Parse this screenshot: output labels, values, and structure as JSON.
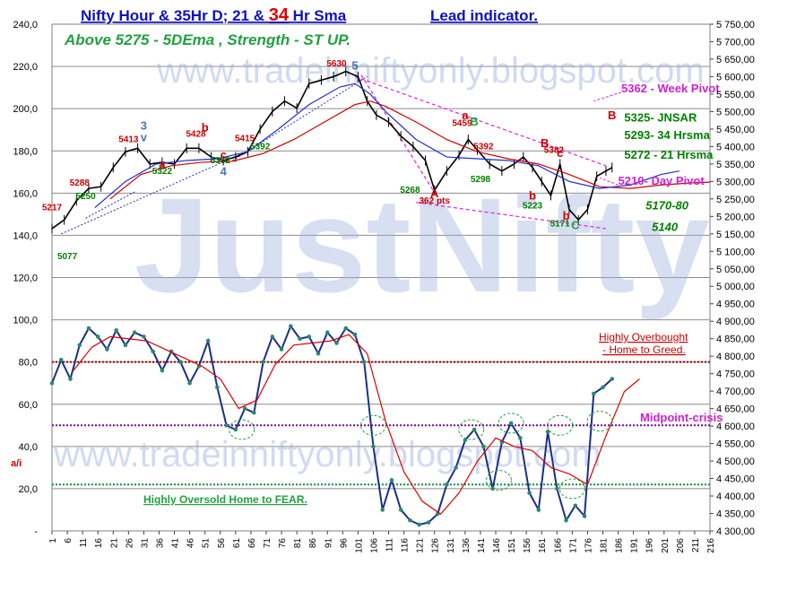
{
  "chart_data": [
    {
      "type": "line",
      "panel": "price",
      "title": "Nifty Hour & 35Hr D; 21 & 34 Hr Sma",
      "title_parts": [
        "Nifty Hour & 35Hr D; 21 & ",
        "34",
        " Hr Sma"
      ],
      "lead_title": "Lead indicator.",
      "subtitle": "Above 5275 -    5DEma ,  Strength - ST  UP.",
      "watermark_top": "www.tradeinniftyonly.blogspot.com",
      "watermark_big": "JustNifty",
      "y_right_ticks": [
        "5 750,00",
        "5 700,00",
        "5 650,00",
        "5 600,00",
        "5 550,00",
        "5 500,00",
        "5 450,00",
        "5 400,00",
        "5 350,00",
        "5 300,00",
        "5 250,00",
        "5 200,00",
        "5 150,00",
        "5 100,00",
        "5 050,00",
        "5 000,00",
        "4 950,00",
        "4 900,00",
        "4 850,00",
        "4 800,00",
        "4 750,00",
        "4 700,00",
        "4 650,00",
        "4 600,00",
        "4 550,00",
        "4 500,00",
        "4 450,00",
        "4 400,00",
        "4 350,00",
        "4 300,00"
      ],
      "y_right_range": [
        4300,
        5750
      ],
      "x_ticks": [
        "1",
        "6",
        "11",
        "16",
        "21",
        "26",
        "31",
        "36",
        "41",
        "46",
        "51",
        "56",
        "61",
        "66",
        "71",
        "76",
        "81",
        "86",
        "91",
        "96",
        "101",
        "106",
        "111",
        "116",
        "121",
        "126",
        "131",
        "136",
        "141",
        "146",
        "151",
        "156",
        "161",
        "166",
        "171",
        "176",
        "181",
        "186",
        "191",
        "196",
        "201",
        "206",
        "211",
        "216"
      ],
      "x_range": [
        1,
        216
      ],
      "series": [
        {
          "name": "Nifty Hour",
          "color": "#000000",
          "x": [
            1,
            5,
            9,
            13,
            17,
            21,
            25,
            29,
            33,
            37,
            41,
            45,
            49,
            53,
            57,
            61,
            65,
            69,
            73,
            77,
            81,
            85,
            89,
            93,
            97,
            101,
            104,
            107,
            111,
            115,
            119,
            123,
            126,
            130,
            134,
            137,
            140,
            144,
            148,
            152,
            155,
            158,
            161,
            164,
            167,
            170,
            173,
            176,
            179,
            182,
            184
          ],
          "y": [
            5165,
            5190,
            5245,
            5280,
            5285,
            5340,
            5385,
            5395,
            5350,
            5355,
            5350,
            5395,
            5395,
            5370,
            5360,
            5370,
            5385,
            5450,
            5500,
            5530,
            5510,
            5580,
            5590,
            5600,
            5615,
            5600,
            5530,
            5490,
            5470,
            5430,
            5400,
            5360,
            5275,
            5330,
            5375,
            5420,
            5390,
            5350,
            5330,
            5350,
            5370,
            5340,
            5300,
            5260,
            5350,
            5220,
            5190,
            5220,
            5315,
            5330,
            5340
          ]
        },
        {
          "name": "34 Hr Sma",
          "color": "#d00000",
          "x": [
            20,
            30,
            40,
            50,
            60,
            70,
            80,
            90,
            100,
            105,
            110,
            120,
            130,
            140,
            150,
            160,
            170,
            180,
            190,
            200,
            210,
            216
          ],
          "y": [
            5250,
            5320,
            5345,
            5355,
            5358,
            5380,
            5420,
            5470,
            5520,
            5530,
            5515,
            5470,
            5420,
            5385,
            5365,
            5350,
            5320,
            5285,
            5280,
            5290,
            5296,
            5298
          ]
        },
        {
          "name": "21 Hrsma",
          "color": "#1f2fd0",
          "x": [
            15,
            25,
            35,
            45,
            55,
            65,
            75,
            85,
            95,
            100,
            105,
            110,
            120,
            130,
            140,
            150,
            160,
            170,
            180,
            190,
            200,
            206
          ],
          "y": [
            5225,
            5300,
            5350,
            5360,
            5365,
            5385,
            5450,
            5520,
            5570,
            5580,
            5550,
            5500,
            5420,
            5370,
            5365,
            5360,
            5345,
            5300,
            5280,
            5290,
            5320,
            5330
          ]
        }
      ],
      "points": [
        {
          "x": 1,
          "y": 5217,
          "text": "5217",
          "color": "#cc0000"
        },
        {
          "x": 6,
          "y": 5077,
          "text": "5077",
          "color": "#008000"
        },
        {
          "x": 10,
          "y": 5288,
          "text": "5288",
          "color": "#cc0000"
        },
        {
          "x": 12,
          "y": 5250,
          "text": "5250",
          "color": "#008000"
        },
        {
          "x": 26,
          "y": 5413,
          "text": "5413",
          "color": "#cc0000"
        },
        {
          "x": 37,
          "y": 5322,
          "text": "5322",
          "color": "#008000"
        },
        {
          "x": 48,
          "y": 5428,
          "text": "5428",
          "color": "#cc0000"
        },
        {
          "x": 56,
          "y": 5352,
          "text": "5352",
          "color": "#008000"
        },
        {
          "x": 64,
          "y": 5415,
          "text": "5415",
          "color": "#cc0000"
        },
        {
          "x": 69,
          "y": 5392,
          "text": "5392",
          "color": "#008000"
        },
        {
          "x": 94,
          "y": 5630,
          "text": "5630",
          "color": "#cc0000"
        },
        {
          "x": 118,
          "y": 5268,
          "text": "5268",
          "color": "#008000"
        },
        {
          "x": 126,
          "y": 5237,
          "text": "362 pts",
          "color": "#cc0000"
        },
        {
          "x": 135,
          "y": 5459,
          "text": "5459",
          "color": "#cc0000"
        },
        {
          "x": 142,
          "y": 5392,
          "text": "5392",
          "color": "#cc0000"
        },
        {
          "x": 141,
          "y": 5298,
          "text": "5298",
          "color": "#008000"
        },
        {
          "x": 158,
          "y": 5223,
          "text": "5223",
          "color": "#008000"
        },
        {
          "x": 165,
          "y": 5382,
          "text": "5382",
          "color": "#cc0000"
        },
        {
          "x": 167,
          "y": 5171,
          "text": "5171",
          "color": "#008000"
        }
      ],
      "wave_labels": [
        {
          "x": 31,
          "y": 5448,
          "text": "3",
          "color": "#4a76b6"
        },
        {
          "x": 31,
          "y": 5415,
          "text": "v",
          "color": "#4a76b6"
        },
        {
          "x": 37,
          "y": 5338,
          "text": "a",
          "color": "#cc0000"
        },
        {
          "x": 51,
          "y": 5443,
          "text": "b",
          "color": "#cc0000"
        },
        {
          "x": 57,
          "y": 5365,
          "text": "c",
          "color": "#cc0000"
        },
        {
          "x": 57,
          "y": 5318,
          "text": "4",
          "color": "#4a76b6"
        },
        {
          "x": 100,
          "y": 5620,
          "text": "5",
          "color": "#4a76b6"
        },
        {
          "x": 126,
          "y": 5255,
          "text": "A",
          "color": "#cc0000"
        },
        {
          "x": 136,
          "y": 5478,
          "text": "a",
          "color": "#cc0000"
        },
        {
          "x": 139,
          "y": 5460,
          "text": "B",
          "color": "#22a040"
        },
        {
          "x": 158,
          "y": 5248,
          "text": "b",
          "color": "#cc0000"
        },
        {
          "x": 162,
          "y": 5398,
          "text": "B",
          "color": "#cc0000"
        },
        {
          "x": 167,
          "y": 5370,
          "text": "c",
          "color": "#cc0000"
        },
        {
          "x": 169,
          "y": 5190,
          "text": "b",
          "color": "#cc0000"
        },
        {
          "x": 172,
          "y": 5163,
          "text": "C",
          "color": "#22a040"
        },
        {
          "x": 184,
          "y": 5478,
          "text": "B",
          "color": "#cc0000"
        }
      ],
      "annotations": [
        {
          "text": "5362 - Week Pivot",
          "color": "#d020d0",
          "x": 187,
          "y": 5555
        },
        {
          "text": "5325- JNSAR",
          "color": "#008000",
          "x": 188,
          "y": 5472
        },
        {
          "text": "5293- 34 Hrsma",
          "color": "#008000",
          "x": 188,
          "y": 5422
        },
        {
          "text": "5272 - 21 Hrsma",
          "color": "#008000",
          "x": 188,
          "y": 5365
        },
        {
          "text": "5210- Day Pivot",
          "color": "#d020d0",
          "x": 186,
          "y": 5290
        },
        {
          "text": "5170-80",
          "color": "#008000",
          "x": 195,
          "y": 5220
        },
        {
          "text": "5140",
          "color": "#008000",
          "x": 197,
          "y": 5158
        }
      ]
    },
    {
      "type": "line",
      "panel": "oscillator",
      "ylabel": "a/i",
      "y_left_ticks": [
        "240,0",
        "220,0",
        "200,0",
        "180,0",
        "160,0",
        "140,0",
        "120,0",
        "100,0",
        "80,0",
        "60,0",
        "40,0",
        "20,0",
        "-"
      ],
      "y_left_range": [
        0,
        240
      ],
      "levels": [
        {
          "y": 80,
          "color": "#a00000",
          "label": "Highly Overbought",
          "label2": "- Home to Greed."
        },
        {
          "y": 50,
          "color": "#8000a0",
          "label": "Midpoint-crisis"
        },
        {
          "y": 22,
          "color": "#109040",
          "label": "Highly Oversold    Home to FEAR."
        }
      ],
      "series": [
        {
          "name": "Lead indicator",
          "color": "#1a2f8a",
          "x": [
            1,
            4,
            7,
            10,
            13,
            16,
            19,
            22,
            25,
            28,
            31,
            34,
            37,
            40,
            43,
            46,
            49,
            52,
            55,
            58,
            61,
            64,
            67,
            70,
            73,
            76,
            79,
            82,
            85,
            88,
            91,
            94,
            97,
            100,
            103,
            106,
            109,
            112,
            115,
            118,
            121,
            124,
            127,
            130,
            133,
            136,
            139,
            142,
            145,
            148,
            151,
            154,
            157,
            160,
            163,
            166,
            169,
            172,
            175,
            178,
            181,
            184
          ],
          "y": [
            70,
            81,
            72,
            88,
            96,
            92,
            86,
            95,
            88,
            94,
            92,
            85,
            76,
            85,
            80,
            70,
            78,
            90,
            68,
            50,
            48,
            58,
            56,
            80,
            92,
            86,
            97,
            91,
            92,
            84,
            94,
            89,
            96,
            93,
            80,
            40,
            10,
            24,
            10,
            5,
            3,
            4,
            8,
            22,
            30,
            43,
            48,
            40,
            20,
            42,
            51,
            44,
            18,
            10,
            47,
            20,
            5,
            12,
            7,
            65,
            68,
            72
          ]
        },
        {
          "name": "Lead indicator signal",
          "color": "#e00000",
          "x": [
            8,
            14,
            20,
            26,
            32,
            38,
            44,
            50,
            56,
            62,
            68,
            74,
            80,
            86,
            92,
            98,
            104,
            110,
            116,
            122,
            128,
            134,
            140,
            146,
            152,
            158,
            164,
            170,
            176,
            182,
            188,
            193
          ],
          "y": [
            76,
            87,
            92,
            91,
            90,
            86,
            82,
            78,
            72,
            58,
            62,
            79,
            88,
            89,
            90,
            93,
            84,
            52,
            28,
            14,
            8,
            18,
            33,
            44,
            40,
            38,
            30,
            27,
            22,
            45,
            66,
            72
          ]
        }
      ],
      "highlight_circles": [
        {
          "x": 63,
          "y": 48
        },
        {
          "x": 106,
          "y": 50
        },
        {
          "x": 138,
          "y": 48
        },
        {
          "x": 147,
          "y": 24
        },
        {
          "x": 151,
          "y": 51
        },
        {
          "x": 167,
          "y": 50
        },
        {
          "x": 180,
          "y": 52
        },
        {
          "x": 171,
          "y": 20
        }
      ]
    }
  ]
}
